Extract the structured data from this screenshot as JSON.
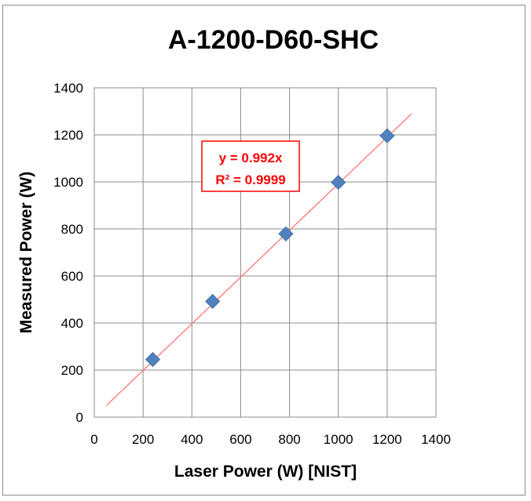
{
  "chart_data": {
    "type": "scatter",
    "title": "A-1200-D60-SHC",
    "xlabel": "Laser Power (W) [NIST]",
    "ylabel": "Measured Power (W)",
    "xlim": [
      0,
      1400
    ],
    "ylim": [
      0,
      1400
    ],
    "xticks": [
      "0",
      "200",
      "400",
      "600",
      "800",
      "1000",
      "1200",
      "1400"
    ],
    "yticks": [
      "0",
      "200",
      "400",
      "600",
      "800",
      "1000",
      "1200",
      "1400"
    ],
    "grid": true,
    "legend": "none",
    "series": [
      {
        "x": [
          240,
          485,
          785,
          1000,
          1200
        ],
        "y": [
          245,
          492,
          779,
          998,
          1196
        ],
        "color": "#4f81bd",
        "marker": "diamond"
      }
    ],
    "trendline": {
      "slope": 0.992,
      "x_range": [
        50,
        1300
      ],
      "color": "#ff6b6b"
    },
    "annotation": {
      "line1": "y = 0.992x",
      "line2": "R² = 0.9999",
      "color": "#ff0000"
    }
  }
}
